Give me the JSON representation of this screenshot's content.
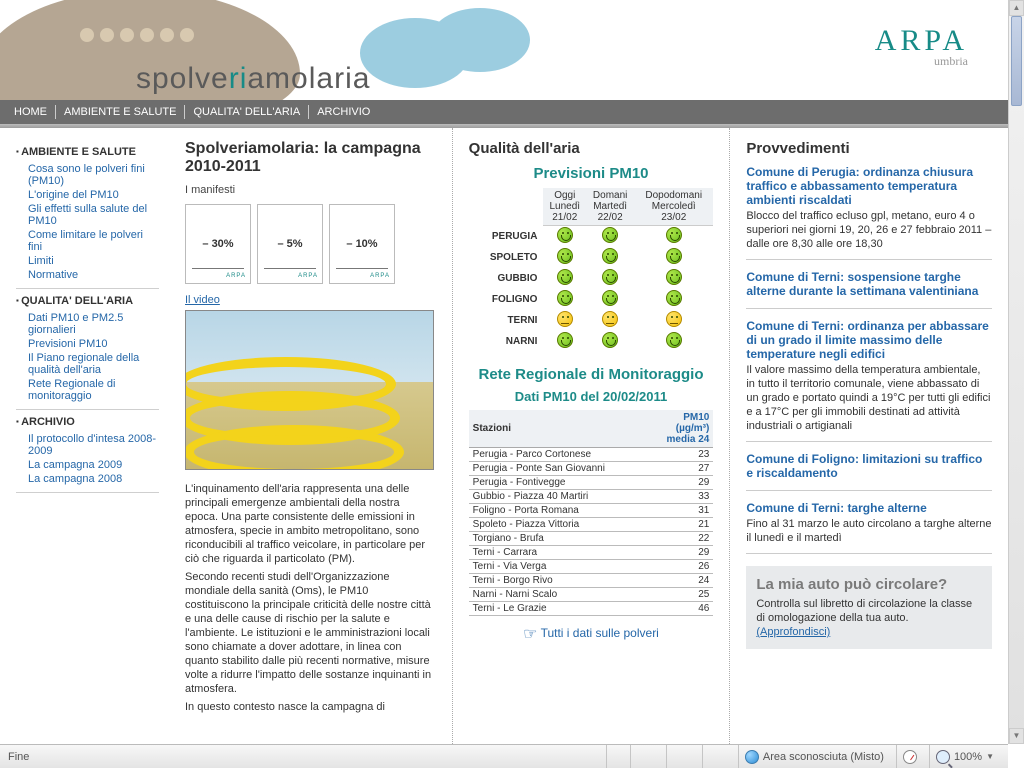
{
  "brand": {
    "main": "ARPA",
    "sub": "umbria",
    "wordmark_pre": "spolve",
    "wordmark_ri": "ri",
    "wordmark_post": "amolaria"
  },
  "topnav": {
    "home": "HOME",
    "ambiente": "AMBIENTE E SALUTE",
    "qualita": "QUALITA' DELL'ARIA",
    "archivio": "ARCHIVIO"
  },
  "sidebar": {
    "sec1_hdr": "AMBIENTE E SALUTE",
    "sec1": [
      "Cosa sono le polveri fini (PM10)",
      "L'origine del PM10",
      "Gli effetti sulla salute del PM10",
      "Come limitare le polveri fini",
      "Limiti",
      "Normative"
    ],
    "sec2_hdr": "QUALITA' DELL'ARIA",
    "sec2": [
      "Dati PM10 e PM2.5 giornalieri",
      "Previsioni PM10",
      "Il Piano regionale della qualità dell'aria",
      "Rete Regionale di monitoraggio"
    ],
    "sec3_hdr": "ARCHIVIO",
    "sec3": [
      "Il protocollo d'intesa 2008-2009",
      "La campagna 2009",
      "La campagna 2008"
    ]
  },
  "campaign": {
    "title": "Spolveriamolaria: la campagna 2010-2011",
    "manifest_label": "I manifesti",
    "thumbs": [
      "– 30%",
      "– 5%",
      "– 10%"
    ],
    "video_label": "Il video",
    "para1": "L'inquinamento dell'aria rappresenta una delle principali emergenze ambientali della nostra epoca. Una parte consistente delle emissioni in atmosfera, specie in ambito metropolitano, sono riconducibili al traffico veicolare, in particolare per ciò che riguarda il particolato (PM).",
    "para2": "Secondo recenti studi dell'Organizzazione mondiale della sanità (Oms), le PM10 costituiscono la principale criticità delle nostre città e una delle cause di rischio per la salute e l'ambiente. Le istituzioni e le amministrazioni locali sono chiamate a dover adottare, in linea con quanto stabilito dalle più recenti normative, misure volte a ridurre l'impatto delle sostanze inquinanti in atmosfera.",
    "para3": "In questo contesto nasce la campagna di"
  },
  "qualita": {
    "header": "Qualità dell'aria",
    "previsioni_hdr": "Previsioni PM10",
    "days": [
      {
        "l1": "Oggi",
        "l2": "Lunedì",
        "l3": "21/02"
      },
      {
        "l1": "Domani",
        "l2": "Martedì",
        "l3": "22/02"
      },
      {
        "l1": "Dopodomani",
        "l2": "Mercoledì",
        "l3": "23/02"
      }
    ],
    "cities": [
      {
        "name": "PERUGIA",
        "v": [
          "g",
          "g",
          "g"
        ]
      },
      {
        "name": "SPOLETO",
        "v": [
          "g",
          "g",
          "g"
        ]
      },
      {
        "name": "GUBBIO",
        "v": [
          "g",
          "g",
          "g"
        ]
      },
      {
        "name": "FOLIGNO",
        "v": [
          "g",
          "g",
          "g"
        ]
      },
      {
        "name": "TERNI",
        "v": [
          "y",
          "y",
          "y"
        ]
      },
      {
        "name": "NARNI",
        "v": [
          "g",
          "g",
          "g"
        ]
      }
    ],
    "rete_hdr1": "Rete Regionale di Monitoraggio",
    "rete_hdr2": "Dati PM10 del 20/02/2011",
    "staz_col1": "Stazioni",
    "staz_col2": "PM10",
    "staz_col2b": "(µg/m³)",
    "staz_col2c": "media 24",
    "stazioni": [
      {
        "n": "Perugia - Parco Cortonese",
        "v": "23"
      },
      {
        "n": "Perugia - Ponte San Giovanni",
        "v": "27"
      },
      {
        "n": "Perugia - Fontivegge",
        "v": "29"
      },
      {
        "n": "Gubbio - Piazza 40 Martiri",
        "v": "33"
      },
      {
        "n": "Foligno - Porta Romana",
        "v": "31"
      },
      {
        "n": "Spoleto - Piazza Vittoria",
        "v": "21"
      },
      {
        "n": "Torgiano - Brufa",
        "v": "22"
      },
      {
        "n": "Terni - Carrara",
        "v": "29"
      },
      {
        "n": "Terni - Via Verga",
        "v": "26"
      },
      {
        "n": "Terni - Borgo Rivo",
        "v": "24"
      },
      {
        "n": "Narni - Narni Scalo",
        "v": "25"
      },
      {
        "n": "Terni - Le Grazie",
        "v": "46"
      }
    ],
    "tutti": "Tutti i dati sulle polveri"
  },
  "provv": {
    "header": "Provvedimenti",
    "items": [
      {
        "t": "Comune di Perugia: ordinanza chiusura traffico e abbassamento temperatura ambienti riscaldati",
        "b": "Blocco del traffico ecluso gpl, metano, euro 4 o superiori nei giorni 19, 20, 26 e 27 febbraio 2011 – dalle ore 8,30 alle ore 18,30"
      },
      {
        "t": "Comune di Terni: sospensione targhe alterne durante la settimana valentiniana",
        "b": ""
      },
      {
        "t": "Comune di Terni: ordinanza per abbassare di un grado il limite massimo delle temperature negli edifici",
        "b": "Il valore massimo della temperatura ambientale, in tutto il territorio comunale, viene abbassato di un grado e portato quindi a 19°C per tutti gli edifici e a 17°C per gli immobili destinati ad attività industriali o artigianali"
      },
      {
        "t": "Comune di Foligno: limitazioni su traffico e riscaldamento",
        "b": ""
      },
      {
        "t": "Comune di Terni: targhe alterne",
        "b": "Fino al 31 marzo le auto circolano a targhe alterne il lunedì e il martedì"
      }
    ],
    "auto_hdr": "La mia auto può circolare?",
    "auto_body": "Controlla sul libretto di circolazione la classe di omologazione della tua auto.",
    "auto_link": "(Approfondisci)"
  },
  "status": {
    "left": "Fine",
    "zone": "Area sconosciuta (Misto)",
    "zoom": "100%"
  }
}
